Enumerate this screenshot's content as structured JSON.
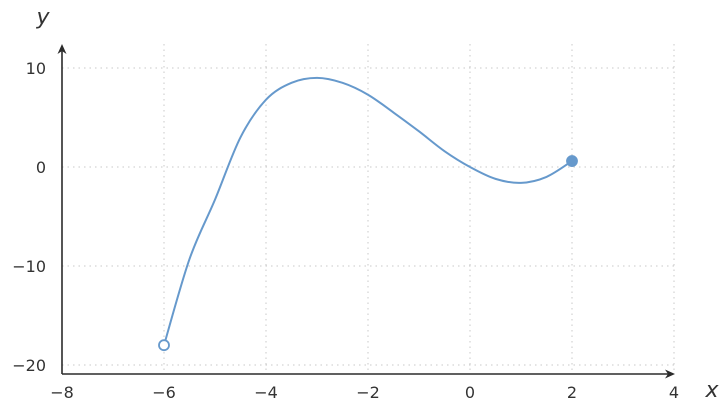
{
  "chart_data": {
    "type": "line",
    "xlabel": "x",
    "ylabel": "y",
    "xlim": [
      -8,
      4
    ],
    "ylim": [
      -21,
      12
    ],
    "x_ticks": [
      -8,
      -6,
      -4,
      -2,
      0,
      2,
      4
    ],
    "y_ticks": [
      -20,
      -10,
      0,
      10
    ],
    "x_tick_labels": [
      "−8",
      "−6",
      "−4",
      "−2",
      "0",
      "2",
      "4"
    ],
    "y_tick_labels": [
      "−20",
      "−10",
      "0",
      "10"
    ],
    "grid": true,
    "series": [
      {
        "color": "#6699cc",
        "x": [
          -6.0,
          -5.5,
          -5.0,
          -4.5,
          -4.0,
          -3.5,
          -3.0,
          -2.5,
          -2.0,
          -1.5,
          -1.0,
          -0.5,
          0.0,
          0.5,
          1.0,
          1.5,
          2.0
        ],
        "y": [
          -18.0,
          -9.3,
          -3.3,
          3.0,
          6.8,
          8.5,
          9.0,
          8.5,
          7.3,
          5.5,
          3.6,
          1.6,
          0.0,
          -1.2,
          -1.6,
          -1.0,
          0.6
        ]
      }
    ],
    "endpoints": [
      {
        "x": -6,
        "y": -18,
        "style": "open"
      },
      {
        "x": 2,
        "y": 0.6,
        "style": "closed"
      }
    ]
  }
}
